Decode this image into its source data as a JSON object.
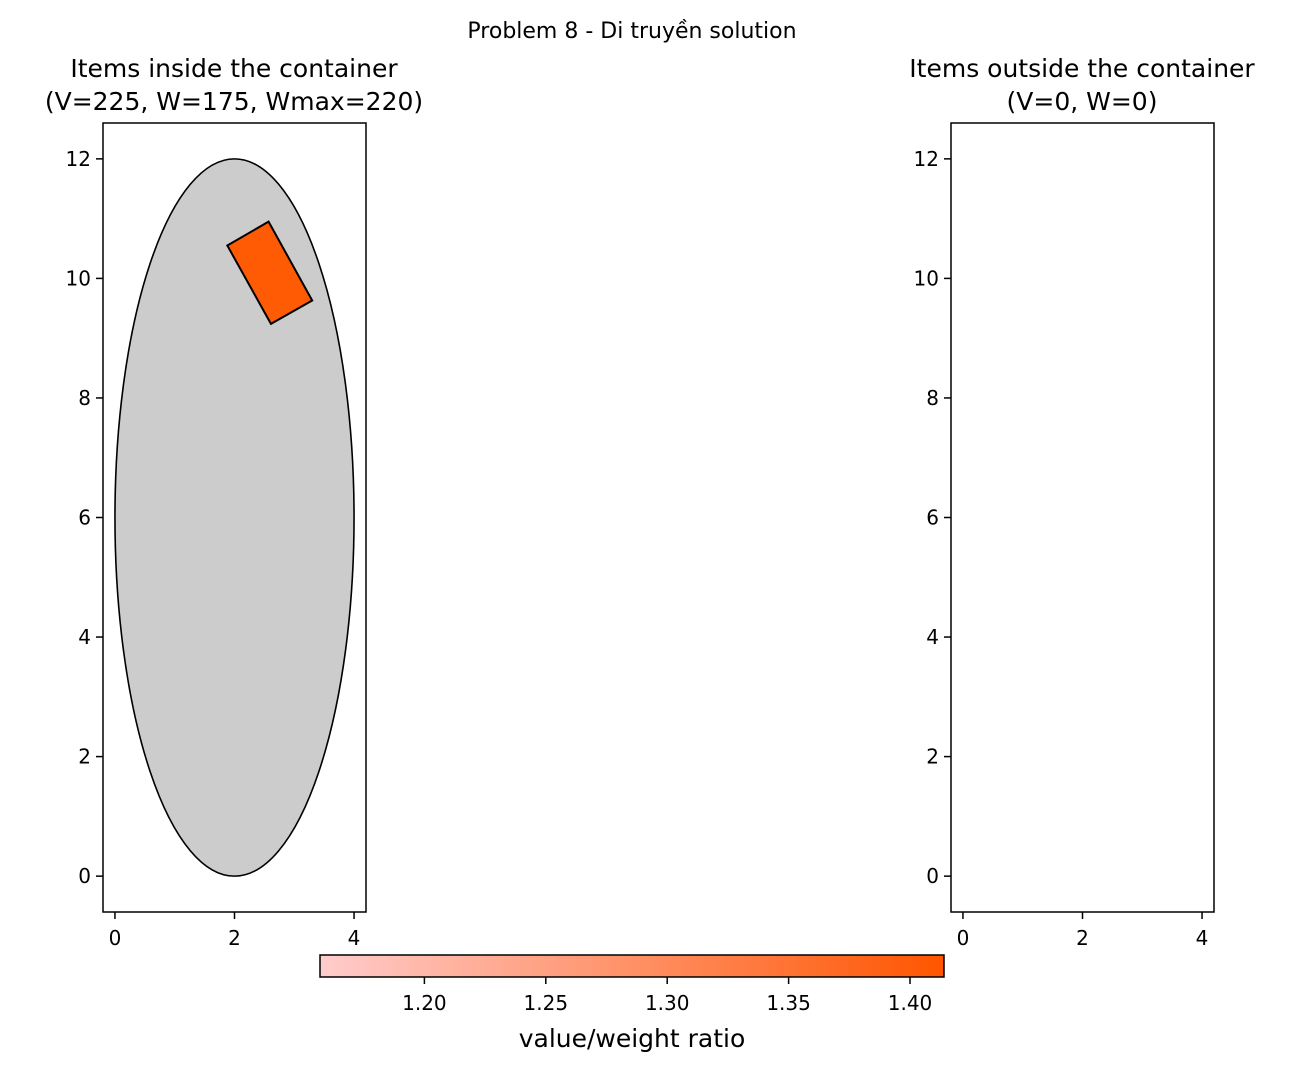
{
  "figure": {
    "suptitle": "Problem 8 - Di truyền solution"
  },
  "chart_data": [
    {
      "type": "scatter",
      "title": "Items inside the container",
      "subtitle": "(V=225, W=175, Wmax=220)",
      "xlim": [
        -0.2,
        4.2
      ],
      "ylim": [
        -0.6,
        12.6
      ],
      "xticks": [
        "0",
        "2",
        "4"
      ],
      "yticks": [
        "0",
        "2",
        "4",
        "6",
        "8",
        "10",
        "12"
      ],
      "container": {
        "shape": "ellipse",
        "center": [
          2,
          6
        ],
        "semi_axes": [
          2,
          6
        ],
        "fill": "#cccccc"
      },
      "items": [
        {
          "shape": "rectangle",
          "corners": [
            [
              1.88,
              10.55
            ],
            [
              2.57,
              10.95
            ],
            [
              3.3,
              9.63
            ],
            [
              2.61,
              9.24
            ]
          ],
          "fill": "#ff5b04"
        }
      ],
      "grid": false
    },
    {
      "type": "scatter",
      "title": "Items outside the container",
      "subtitle": "(V=0, W=0)",
      "xlim": [
        -0.2,
        4.2
      ],
      "ylim": [
        -0.6,
        12.6
      ],
      "xticks": [
        "0",
        "2",
        "4"
      ],
      "yticks": [
        "0",
        "2",
        "4",
        "6",
        "8",
        "10",
        "12"
      ],
      "items": [],
      "grid": false
    }
  ],
  "colorbar": {
    "label": "value/weight ratio",
    "min": 1.157,
    "max": 1.414,
    "ticks": [
      "1.20",
      "1.25",
      "1.30",
      "1.35",
      "1.40"
    ],
    "color_start": "#ffcccc",
    "color_end": "#ff5500"
  }
}
